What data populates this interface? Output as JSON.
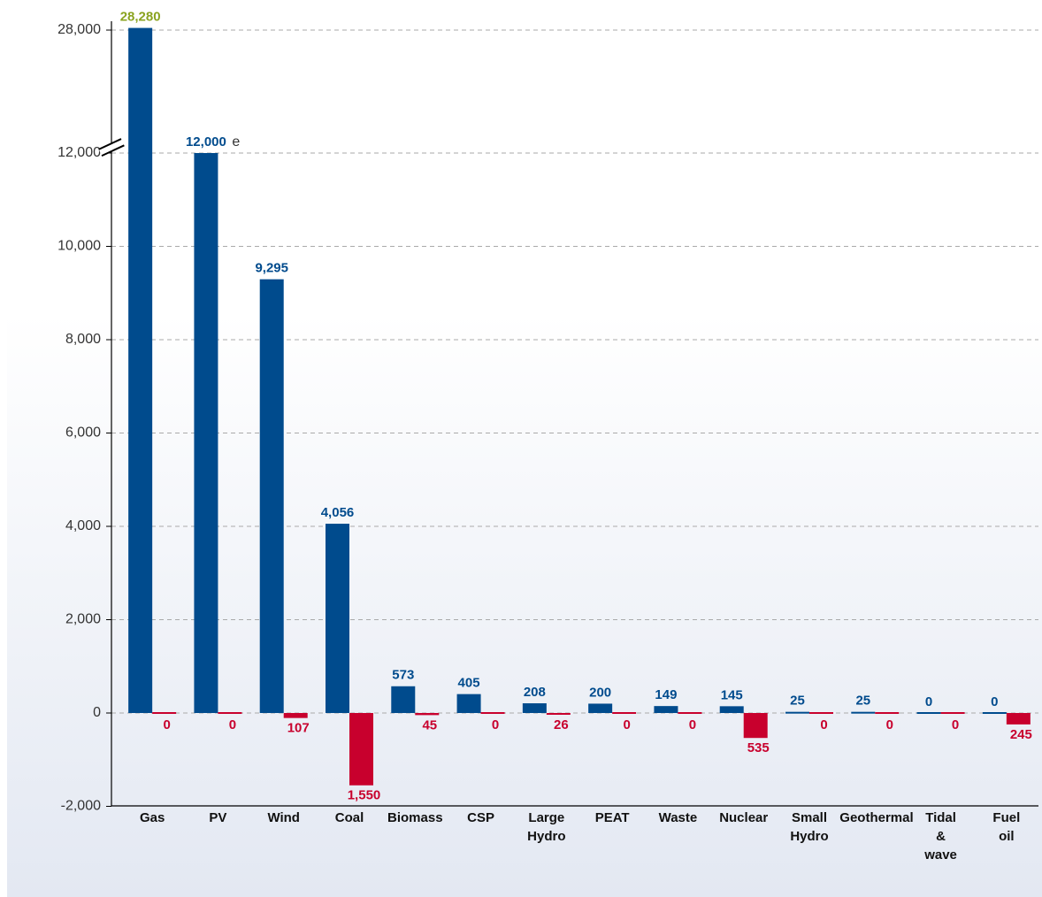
{
  "chart_data": {
    "type": "bar",
    "categories": [
      "Gas",
      "PV",
      "Wind",
      "Coal",
      "Biomass",
      "CSP",
      "Large Hydro",
      "PEAT",
      "Waste",
      "Nuclear",
      "Small Hydro",
      "Geothermal",
      "Tidal & wave",
      "Fuel oil"
    ],
    "series": [
      {
        "color": "#004b8d",
        "values": [
          28280,
          12000,
          9295,
          4056,
          573,
          405,
          208,
          200,
          149,
          145,
          25,
          25,
          0,
          0
        ],
        "value_labels": [
          "28,280",
          "12,000",
          "9,295",
          "4,056",
          "573",
          "405",
          "208",
          "200",
          "149",
          "145",
          "25",
          "25",
          "0",
          "0"
        ]
      },
      {
        "color": "#c8002d",
        "values": [
          0,
          0,
          -107,
          -1550,
          -45,
          0,
          -26,
          0,
          0,
          -535,
          0,
          0,
          0,
          -245
        ],
        "value_labels": [
          "0",
          "0",
          "107",
          "1,550",
          "45",
          "0",
          "26",
          "0",
          "0",
          "535",
          "0",
          "0",
          "0",
          "245"
        ]
      }
    ],
    "annotations": [
      {
        "text": "e",
        "category": 1
      }
    ],
    "ylim": [
      -2000,
      28000
    ],
    "ybreak": 12000,
    "yticks": [
      {
        "value": -2000,
        "label": "-2,000"
      },
      0,
      {
        "value": 2000,
        "label": "2,000"
      },
      {
        "value": 4000,
        "label": "4,000"
      },
      {
        "value": 6000,
        "label": "6,000"
      },
      {
        "value": 8000,
        "label": "8,000"
      },
      {
        "value": 10000,
        "label": "10,000"
      },
      {
        "value": 12000,
        "label": "12,000"
      },
      {
        "value": 28000,
        "label": "28,000"
      }
    ],
    "grid": true
  }
}
